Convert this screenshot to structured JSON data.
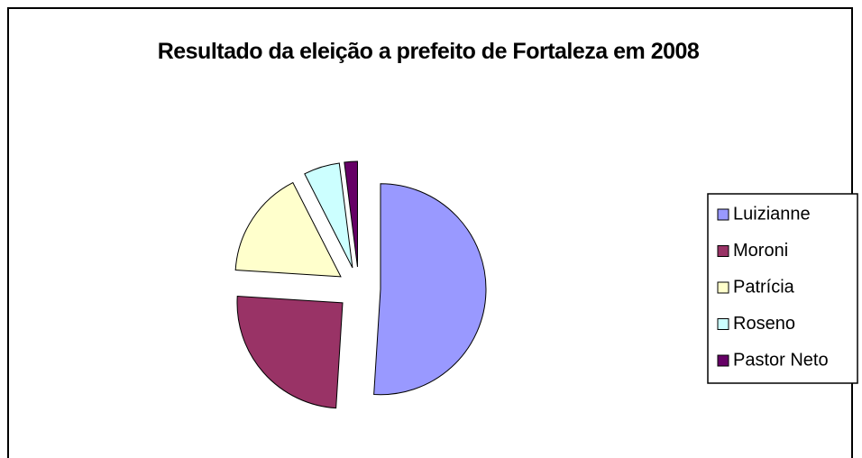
{
  "chart_data": {
    "type": "pie",
    "title": "Resultado da eleição a prefeito de Fortaleza em 2008",
    "categories": [
      "Luizianne",
      "Moroni",
      "Patrícia",
      "Roseno",
      "Pastor Neto"
    ],
    "values": [
      51,
      25,
      16.5,
      5.5,
      2
    ],
    "colors": [
      "#9999ff",
      "#993366",
      "#ffffcc",
      "#ccffff",
      "#660066"
    ],
    "legend": "right",
    "exploded": true
  }
}
